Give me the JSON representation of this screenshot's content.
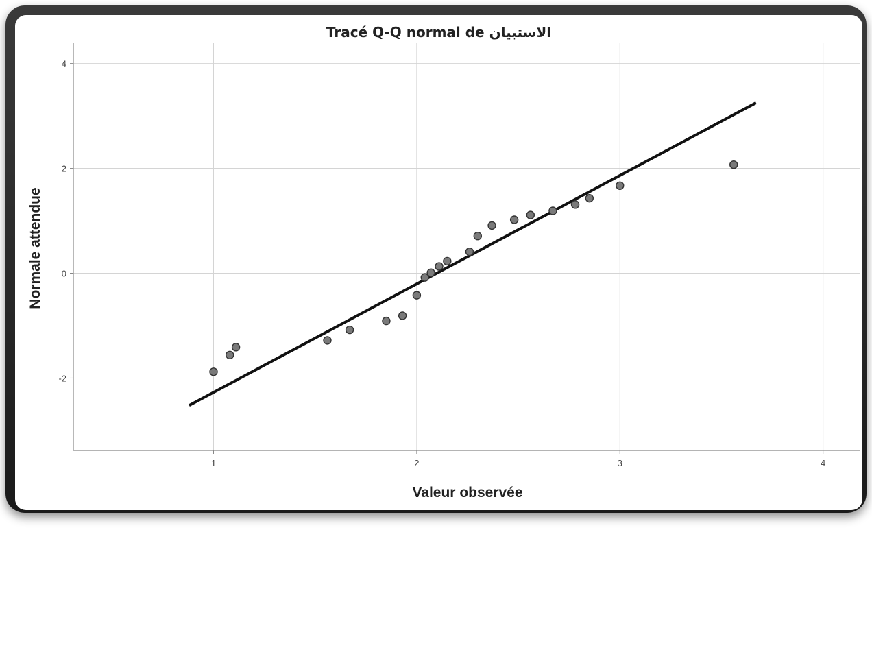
{
  "chart_data": {
    "type": "scatter",
    "title": "Tracé Q-Q normal de الاستبيان",
    "xlabel": "Valeur observée",
    "ylabel": "Normale attendue",
    "xlim": [
      0.31,
      4.18
    ],
    "ylim": [
      -3.38,
      4.4
    ],
    "xticks": [
      1,
      2,
      3,
      4
    ],
    "yticks": [
      -2,
      0,
      2,
      4
    ],
    "grid": true,
    "points": [
      {
        "x": 1.0,
        "y": -1.88
      },
      {
        "x": 1.08,
        "y": -1.56
      },
      {
        "x": 1.11,
        "y": -1.41
      },
      {
        "x": 1.56,
        "y": -1.28
      },
      {
        "x": 1.67,
        "y": -1.08
      },
      {
        "x": 1.85,
        "y": -0.91
      },
      {
        "x": 1.93,
        "y": -0.81
      },
      {
        "x": 2.0,
        "y": -0.42
      },
      {
        "x": 2.04,
        "y": -0.08
      },
      {
        "x": 2.07,
        "y": 0.01
      },
      {
        "x": 2.11,
        "y": 0.13
      },
      {
        "x": 2.15,
        "y": 0.23
      },
      {
        "x": 2.26,
        "y": 0.41
      },
      {
        "x": 2.3,
        "y": 0.71
      },
      {
        "x": 2.37,
        "y": 0.91
      },
      {
        "x": 2.48,
        "y": 1.02
      },
      {
        "x": 2.56,
        "y": 1.11
      },
      {
        "x": 2.67,
        "y": 1.19
      },
      {
        "x": 2.78,
        "y": 1.31
      },
      {
        "x": 2.85,
        "y": 1.43
      },
      {
        "x": 3.0,
        "y": 1.67
      },
      {
        "x": 3.56,
        "y": 2.07
      }
    ],
    "reference_line": {
      "x": [
        0.88,
        3.67
      ],
      "y": [
        -2.52,
        3.25
      ]
    },
    "colors": {
      "point_fill": "#7a7a7a",
      "point_stroke": "#333333",
      "line": "#111111",
      "grid": "#d4d4d4",
      "axis": "#888888",
      "frame": "#2a2a2a"
    }
  }
}
